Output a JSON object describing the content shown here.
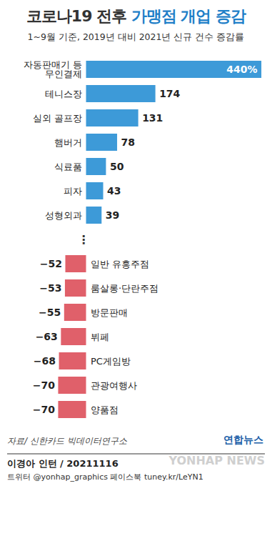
{
  "chart_data": {
    "type": "bar",
    "title": "코로나19 전후 가맹점 개업 증감",
    "subtitle": "1~9월 기준, 2019년 대비 2021년 신규 건수 증감률",
    "categories": [
      "자동판매기 등\n무인결제",
      "테니스장",
      "실외 골프장",
      "햄버거",
      "식료품",
      "피자",
      "성형외과",
      "⋮",
      "일반 유흥주점",
      "룸살롱·단란주점",
      "방문판매",
      "뷔페",
      "PC게임방",
      "관광여행사",
      "양품점"
    ],
    "values": [
      440,
      174,
      131,
      78,
      50,
      43,
      39,
      null,
      -52,
      -53,
      -55,
      -63,
      -68,
      -70,
      -70
    ],
    "value_labels": [
      "440%",
      "174",
      "131",
      "78",
      "50",
      "43",
      "39",
      null,
      "−52",
      "−53",
      "−55",
      "−63",
      "−68",
      "−70",
      "−70"
    ],
    "colors": [
      "#3d9ad8",
      "#3d9ad8",
      "#3d9ad8",
      "#3d9ad8",
      "#3d9ad8",
      "#3d9ad8",
      "#3d9ad8",
      null,
      "#e0606a",
      "#e0606a",
      "#e0606a",
      "#e0606a",
      "#e0606a",
      "#e0606a",
      "#e0606a"
    ],
    "orientation": "horizontal",
    "data_labels": true,
    "tick_labels": false,
    "annotations": [
      "자료/ 신한카드 빅데이터연구소",
      "연합뉴스",
      "이경아 인턴 / 20211116",
      "트위터 @yonhap_graphics  페이스북 tuney.kr/LeYN1",
      "YONHAP NEWS"
    ]
  }
}
